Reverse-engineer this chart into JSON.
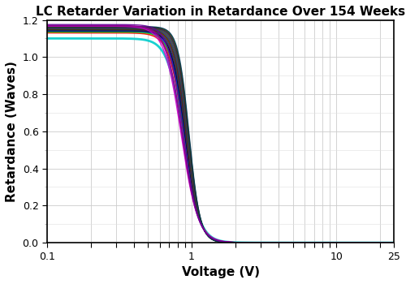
{
  "title": "LC Retarder Variation in Retardance Over 154 Weeks",
  "xlabel": "Voltage (V)",
  "ylabel": "Retardance (Waves)",
  "xlim": [
    0.1,
    25
  ],
  "ylim": [
    0.0,
    1.2
  ],
  "yticks": [
    0.0,
    0.2,
    0.4,
    0.6,
    0.8,
    1.0,
    1.2
  ],
  "curve_params": [
    {
      "base_retardance": 1.1,
      "v_half": 0.88,
      "steepness": 8.0,
      "color": "#00CCCC",
      "lw": 2.0
    },
    {
      "base_retardance": 1.13,
      "v_half": 0.89,
      "steepness": 8.5,
      "color": "#FF0000",
      "lw": 1.2
    },
    {
      "base_retardance": 1.135,
      "v_half": 0.895,
      "steepness": 8.8,
      "color": "#00CC00",
      "lw": 1.2
    },
    {
      "base_retardance": 1.14,
      "v_half": 0.9,
      "steepness": 9.0,
      "color": "#0000FF",
      "lw": 1.2
    },
    {
      "base_retardance": 1.142,
      "v_half": 0.905,
      "steepness": 9.2,
      "color": "#000000",
      "lw": 1.0
    },
    {
      "base_retardance": 1.144,
      "v_half": 0.91,
      "steepness": 9.4,
      "color": "#333333",
      "lw": 1.0
    },
    {
      "base_retardance": 1.146,
      "v_half": 0.915,
      "steepness": 9.6,
      "color": "#003399",
      "lw": 1.0
    },
    {
      "base_retardance": 1.148,
      "v_half": 0.92,
      "steepness": 9.8,
      "color": "#990000",
      "lw": 1.0
    },
    {
      "base_retardance": 1.15,
      "v_half": 0.925,
      "steepness": 10.0,
      "color": "#006600",
      "lw": 1.0
    },
    {
      "base_retardance": 1.152,
      "v_half": 0.93,
      "steepness": 10.2,
      "color": "#660066",
      "lw": 1.0
    },
    {
      "base_retardance": 1.154,
      "v_half": 0.935,
      "steepness": 10.4,
      "color": "#005577",
      "lw": 1.0
    },
    {
      "base_retardance": 1.156,
      "v_half": 0.94,
      "steepness": 10.6,
      "color": "#774400",
      "lw": 1.0
    },
    {
      "base_retardance": 1.158,
      "v_half": 0.945,
      "steepness": 10.8,
      "color": "#004477",
      "lw": 1.0
    },
    {
      "base_retardance": 1.16,
      "v_half": 0.95,
      "steepness": 11.0,
      "color": "#550033",
      "lw": 1.0
    },
    {
      "base_retardance": 1.162,
      "v_half": 0.955,
      "steepness": 11.2,
      "color": "#335500",
      "lw": 1.0
    },
    {
      "base_retardance": 1.164,
      "v_half": 0.96,
      "steepness": 11.4,
      "color": "#003355",
      "lw": 1.0
    },
    {
      "base_retardance": 1.166,
      "v_half": 0.845,
      "steepness": 7.5,
      "color": "#CC00CC",
      "lw": 1.0
    },
    {
      "base_retardance": 1.168,
      "v_half": 0.855,
      "steepness": 7.8,
      "color": "#AA00AA",
      "lw": 1.0
    },
    {
      "base_retardance": 1.17,
      "v_half": 0.86,
      "steepness": 8.0,
      "color": "#880088",
      "lw": 1.0
    },
    {
      "base_retardance": 1.175,
      "v_half": 0.875,
      "steepness": 8.5,
      "color": "#660099",
      "lw": 1.0
    }
  ],
  "background_color": "#FFFFFF",
  "grid_major_color": "#CCCCCC",
  "grid_minor_color": "#E0E0E0",
  "title_fontsize": 11,
  "axis_label_fontsize": 11,
  "tick_labelsize": 9
}
